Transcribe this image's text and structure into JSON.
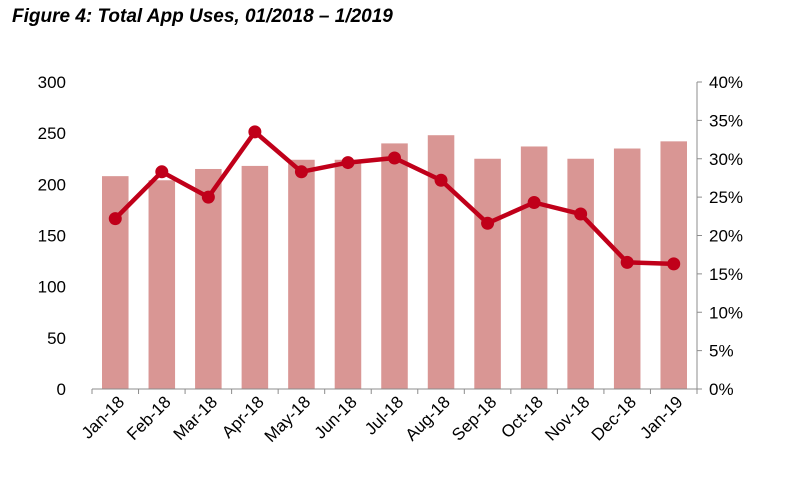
{
  "chart_data": {
    "type": "bar",
    "title": "Figure 4: Total App Uses, 01/2018 – 1/2019",
    "categories": [
      "Jan-18",
      "Feb-18",
      "Mar-18",
      "Apr-18",
      "May-18",
      "Jun-18",
      "Jul-18",
      "Aug-18",
      "Sep-18",
      "Oct-18",
      "Nov-18",
      "Dec-18",
      "Jan-19"
    ],
    "series": [
      {
        "type": "bar",
        "axis": "left",
        "color": "#d99694",
        "values": [
          208,
          204,
          215,
          218,
          224,
          224,
          240,
          248,
          225,
          237,
          225,
          235,
          242
        ]
      },
      {
        "type": "line",
        "axis": "right",
        "color": "#c0001a",
        "values": [
          0.222,
          0.283,
          0.25,
          0.335,
          0.283,
          0.295,
          0.301,
          0.272,
          0.216,
          0.243,
          0.228,
          0.165,
          0.163
        ]
      }
    ],
    "y_left": {
      "min": 0,
      "max": 300,
      "ticks": [
        0,
        50,
        100,
        150,
        200,
        250,
        300
      ],
      "tick_labels": [
        "0",
        "50",
        "100",
        "150",
        "200",
        "250",
        "300"
      ]
    },
    "y_right": {
      "min": 0,
      "max": 0.4,
      "ticks": [
        0,
        0.05,
        0.1,
        0.15,
        0.2,
        0.25,
        0.3,
        0.35,
        0.4
      ],
      "tick_labels": [
        "0%",
        "5%",
        "10%",
        "15%",
        "20%",
        "25%",
        "30%",
        "35%",
        "40%"
      ]
    },
    "grid": false,
    "legend": "none"
  }
}
